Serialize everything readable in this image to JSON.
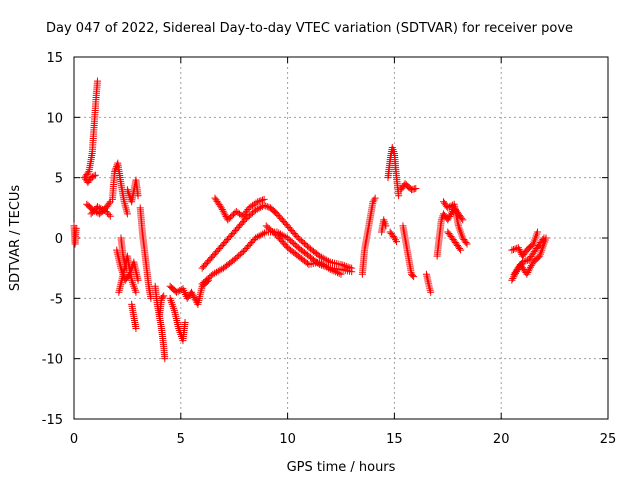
{
  "chart_data": {
    "type": "scatter",
    "title": "Day 047 of 2022, Sidereal Day-to-day VTEC variation (SDTVAR) for receiver pove",
    "xlabel": "GPS time / hours",
    "ylabel": "SDTVAR / TECUs",
    "xlim": [
      0,
      25
    ],
    "ylim": [
      -15,
      15
    ],
    "xticks": [
      0,
      5,
      10,
      15,
      20,
      25
    ],
    "yticks": [
      -15,
      -10,
      -5,
      0,
      5,
      10,
      15
    ],
    "xtick_labels": [
      "0",
      "5",
      "10",
      "15",
      "20",
      "25"
    ],
    "ytick_labels": [
      "-15",
      "-10",
      "-5",
      "0",
      "5",
      "10",
      "15"
    ],
    "grid": true,
    "marker": "+",
    "color": "#ff0000",
    "series": [
      {
        "name": "seg-00",
        "points": [
          [
            0.0,
            1.0
          ],
          [
            0.05,
            -0.5
          ],
          [
            0.1,
            0.8
          ]
        ]
      },
      {
        "name": "seg-01",
        "points": [
          [
            0.5,
            5.0
          ],
          [
            0.7,
            5.5
          ],
          [
            0.85,
            7.0
          ],
          [
            0.95,
            9.5
          ],
          [
            1.05,
            12.0
          ],
          [
            1.1,
            13.0
          ]
        ]
      },
      {
        "name": "seg-02",
        "points": [
          [
            0.5,
            5.0
          ],
          [
            0.65,
            4.6
          ],
          [
            0.8,
            5.0
          ],
          [
            1.0,
            5.2
          ]
        ]
      },
      {
        "name": "seg-03",
        "points": [
          [
            0.6,
            2.8
          ],
          [
            0.9,
            2.3
          ],
          [
            1.2,
            2.0
          ],
          [
            1.5,
            2.5
          ],
          [
            1.7,
            3.0
          ]
        ]
      },
      {
        "name": "seg-04",
        "points": [
          [
            0.8,
            2.0
          ],
          [
            1.1,
            2.6
          ],
          [
            1.5,
            2.2
          ],
          [
            1.7,
            1.8
          ]
        ]
      },
      {
        "name": "seg-05",
        "points": [
          [
            1.8,
            3.2
          ],
          [
            1.9,
            5.5
          ],
          [
            2.05,
            6.2
          ],
          [
            2.2,
            4.5
          ],
          [
            2.35,
            3.0
          ],
          [
            2.5,
            2.0
          ]
        ]
      },
      {
        "name": "seg-06",
        "points": [
          [
            2.0,
            -1.0
          ],
          [
            2.2,
            -2.5
          ],
          [
            2.4,
            -3.5
          ],
          [
            2.6,
            -3.0
          ],
          [
            2.8,
            -2.0
          ],
          [
            3.0,
            -3.5
          ]
        ]
      },
      {
        "name": "seg-07",
        "points": [
          [
            2.1,
            -4.5
          ],
          [
            2.3,
            -3.0
          ],
          [
            2.5,
            -1.5
          ],
          [
            2.7,
            -3.5
          ],
          [
            2.9,
            -4.5
          ]
        ]
      },
      {
        "name": "seg-08",
        "points": [
          [
            2.2,
            0.0
          ],
          [
            2.3,
            -1.5
          ],
          [
            2.45,
            -2.5
          ]
        ]
      },
      {
        "name": "seg-09",
        "points": [
          [
            2.5,
            4.0
          ],
          [
            2.7,
            3.0
          ],
          [
            2.9,
            4.8
          ],
          [
            3.0,
            3.5
          ]
        ]
      },
      {
        "name": "seg-10",
        "points": [
          [
            2.7,
            -5.5
          ],
          [
            2.8,
            -6.5
          ],
          [
            2.9,
            -7.5
          ]
        ]
      },
      {
        "name": "seg-11",
        "points": [
          [
            3.1,
            2.5
          ],
          [
            3.2,
            0.5
          ],
          [
            3.3,
            -1.0
          ],
          [
            3.4,
            -2.5
          ],
          [
            3.5,
            -4.0
          ],
          [
            3.6,
            -5.0
          ]
        ]
      },
      {
        "name": "seg-12",
        "points": [
          [
            3.8,
            -4.0
          ],
          [
            3.9,
            -5.5
          ],
          [
            4.0,
            -6.5
          ],
          [
            4.1,
            -7.5
          ],
          [
            4.2,
            -9.0
          ],
          [
            4.25,
            -10.0
          ]
        ]
      },
      {
        "name": "seg-13",
        "points": [
          [
            4.0,
            -6.5
          ],
          [
            4.1,
            -5.0
          ],
          [
            4.2,
            -4.8
          ]
        ]
      },
      {
        "name": "seg-14",
        "points": [
          [
            4.5,
            -5.0
          ],
          [
            4.7,
            -6.0
          ],
          [
            4.9,
            -7.5
          ],
          [
            5.1,
            -8.5
          ],
          [
            5.2,
            -7.0
          ]
        ]
      },
      {
        "name": "seg-15",
        "points": [
          [
            4.5,
            -4.0
          ],
          [
            4.8,
            -4.5
          ],
          [
            5.1,
            -4.2
          ],
          [
            5.3,
            -5.0
          ],
          [
            5.5,
            -4.5
          ],
          [
            5.8,
            -5.5
          ],
          [
            6.0,
            -4.0
          ],
          [
            6.3,
            -3.5
          ]
        ]
      },
      {
        "name": "seg-16",
        "points": [
          [
            6.0,
            -2.5
          ],
          [
            6.5,
            -1.5
          ],
          [
            7.0,
            -0.5
          ],
          [
            7.5,
            0.5
          ],
          [
            8.0,
            1.5
          ],
          [
            8.5,
            2.3
          ],
          [
            8.9,
            2.7
          ],
          [
            9.2,
            2.5
          ],
          [
            9.5,
            2.0
          ],
          [
            10.0,
            1.0
          ],
          [
            10.5,
            0.0
          ],
          [
            11.0,
            -0.8
          ],
          [
            11.5,
            -1.5
          ],
          [
            12.0,
            -2.0
          ],
          [
            12.5,
            -2.2
          ],
          [
            13.0,
            -2.5
          ]
        ]
      },
      {
        "name": "seg-17",
        "points": [
          [
            6.0,
            -3.8
          ],
          [
            6.5,
            -3.0
          ],
          [
            7.0,
            -2.5
          ],
          [
            7.5,
            -1.8
          ],
          [
            8.0,
            -1.0
          ],
          [
            8.5,
            0.0
          ],
          [
            9.0,
            0.5
          ],
          [
            9.5,
            0.5
          ],
          [
            10.0,
            0.0
          ],
          [
            10.5,
            -0.8
          ],
          [
            11.0,
            -1.5
          ],
          [
            11.5,
            -2.2
          ],
          [
            12.0,
            -2.5
          ],
          [
            12.5,
            -2.6
          ],
          [
            13.0,
            -2.8
          ]
        ]
      },
      {
        "name": "seg-18",
        "points": [
          [
            6.6,
            3.3
          ],
          [
            6.9,
            2.5
          ],
          [
            7.2,
            1.5
          ],
          [
            7.6,
            2.2
          ],
          [
            7.9,
            1.8
          ],
          [
            8.2,
            2.5
          ],
          [
            8.6,
            3.0
          ],
          [
            8.9,
            3.2
          ]
        ]
      },
      {
        "name": "seg-19",
        "points": [
          [
            9.0,
            1.0
          ],
          [
            9.5,
            0.2
          ],
          [
            10.0,
            -0.8
          ],
          [
            10.5,
            -1.5
          ],
          [
            11.0,
            -2.2
          ],
          [
            11.5,
            -2.0
          ],
          [
            12.0,
            -2.6
          ],
          [
            12.5,
            -3.0
          ]
        ]
      },
      {
        "name": "seg-20",
        "points": [
          [
            13.5,
            -3.0
          ],
          [
            13.6,
            -1.0
          ],
          [
            13.7,
            0.0
          ],
          [
            13.8,
            1.0
          ],
          [
            13.9,
            2.0
          ],
          [
            14.0,
            3.0
          ],
          [
            14.1,
            3.3
          ]
        ]
      },
      {
        "name": "seg-21",
        "points": [
          [
            14.4,
            0.5
          ],
          [
            14.5,
            1.5
          ],
          [
            14.6,
            1.0
          ]
        ]
      },
      {
        "name": "seg-22",
        "points": [
          [
            14.7,
            5.0
          ],
          [
            14.8,
            6.5
          ],
          [
            14.9,
            7.5
          ],
          [
            15.0,
            7.0
          ],
          [
            15.1,
            5.0
          ],
          [
            15.2,
            3.5
          ]
        ]
      },
      {
        "name": "seg-23",
        "points": [
          [
            14.8,
            0.5
          ],
          [
            15.0,
            0.0
          ],
          [
            15.1,
            -0.3
          ]
        ]
      },
      {
        "name": "seg-24",
        "points": [
          [
            15.3,
            4.0
          ],
          [
            15.5,
            4.5
          ],
          [
            15.8,
            4.0
          ],
          [
            16.0,
            4.1
          ]
        ]
      },
      {
        "name": "seg-25",
        "points": [
          [
            15.4,
            1.0
          ],
          [
            15.5,
            0.0
          ],
          [
            15.6,
            -1.0
          ],
          [
            15.7,
            -2.0
          ],
          [
            15.8,
            -3.0
          ],
          [
            15.9,
            -3.2
          ]
        ]
      },
      {
        "name": "seg-26",
        "points": [
          [
            16.5,
            -3.0
          ],
          [
            16.6,
            -3.8
          ],
          [
            16.7,
            -4.5
          ]
        ]
      },
      {
        "name": "seg-27",
        "points": [
          [
            17.0,
            -1.5
          ],
          [
            17.1,
            0.0
          ],
          [
            17.2,
            1.5
          ],
          [
            17.3,
            2.0
          ],
          [
            17.5,
            1.5
          ],
          [
            17.8,
            2.5
          ],
          [
            18.0,
            2.0
          ],
          [
            18.2,
            1.5
          ]
        ]
      },
      {
        "name": "seg-28",
        "points": [
          [
            17.3,
            3.0
          ],
          [
            17.5,
            2.5
          ],
          [
            17.8,
            2.8
          ],
          [
            18.0,
            1.0
          ],
          [
            18.2,
            0.0
          ],
          [
            18.4,
            -0.5
          ]
        ]
      },
      {
        "name": "seg-29",
        "points": [
          [
            17.5,
            0.5
          ],
          [
            17.7,
            0.0
          ],
          [
            17.9,
            -0.5
          ],
          [
            18.1,
            -1.0
          ]
        ]
      },
      {
        "name": "seg-30",
        "points": [
          [
            20.5,
            -1.0
          ],
          [
            20.8,
            -0.8
          ],
          [
            21.0,
            -1.5
          ],
          [
            21.2,
            -1.0
          ],
          [
            21.5,
            -0.5
          ],
          [
            21.7,
            0.5
          ]
        ]
      },
      {
        "name": "seg-31",
        "points": [
          [
            20.5,
            -3.5
          ],
          [
            20.8,
            -2.5
          ],
          [
            21.0,
            -2.0
          ],
          [
            21.3,
            -1.8
          ],
          [
            21.6,
            -1.0
          ],
          [
            21.8,
            -0.5
          ],
          [
            22.0,
            0.0
          ]
        ]
      },
      {
        "name": "seg-32",
        "points": [
          [
            20.6,
            -3.0
          ],
          [
            20.9,
            -2.2
          ],
          [
            21.2,
            -3.0
          ],
          [
            21.5,
            -2.0
          ],
          [
            21.8,
            -1.5
          ],
          [
            22.1,
            0.0
          ]
        ]
      }
    ]
  }
}
